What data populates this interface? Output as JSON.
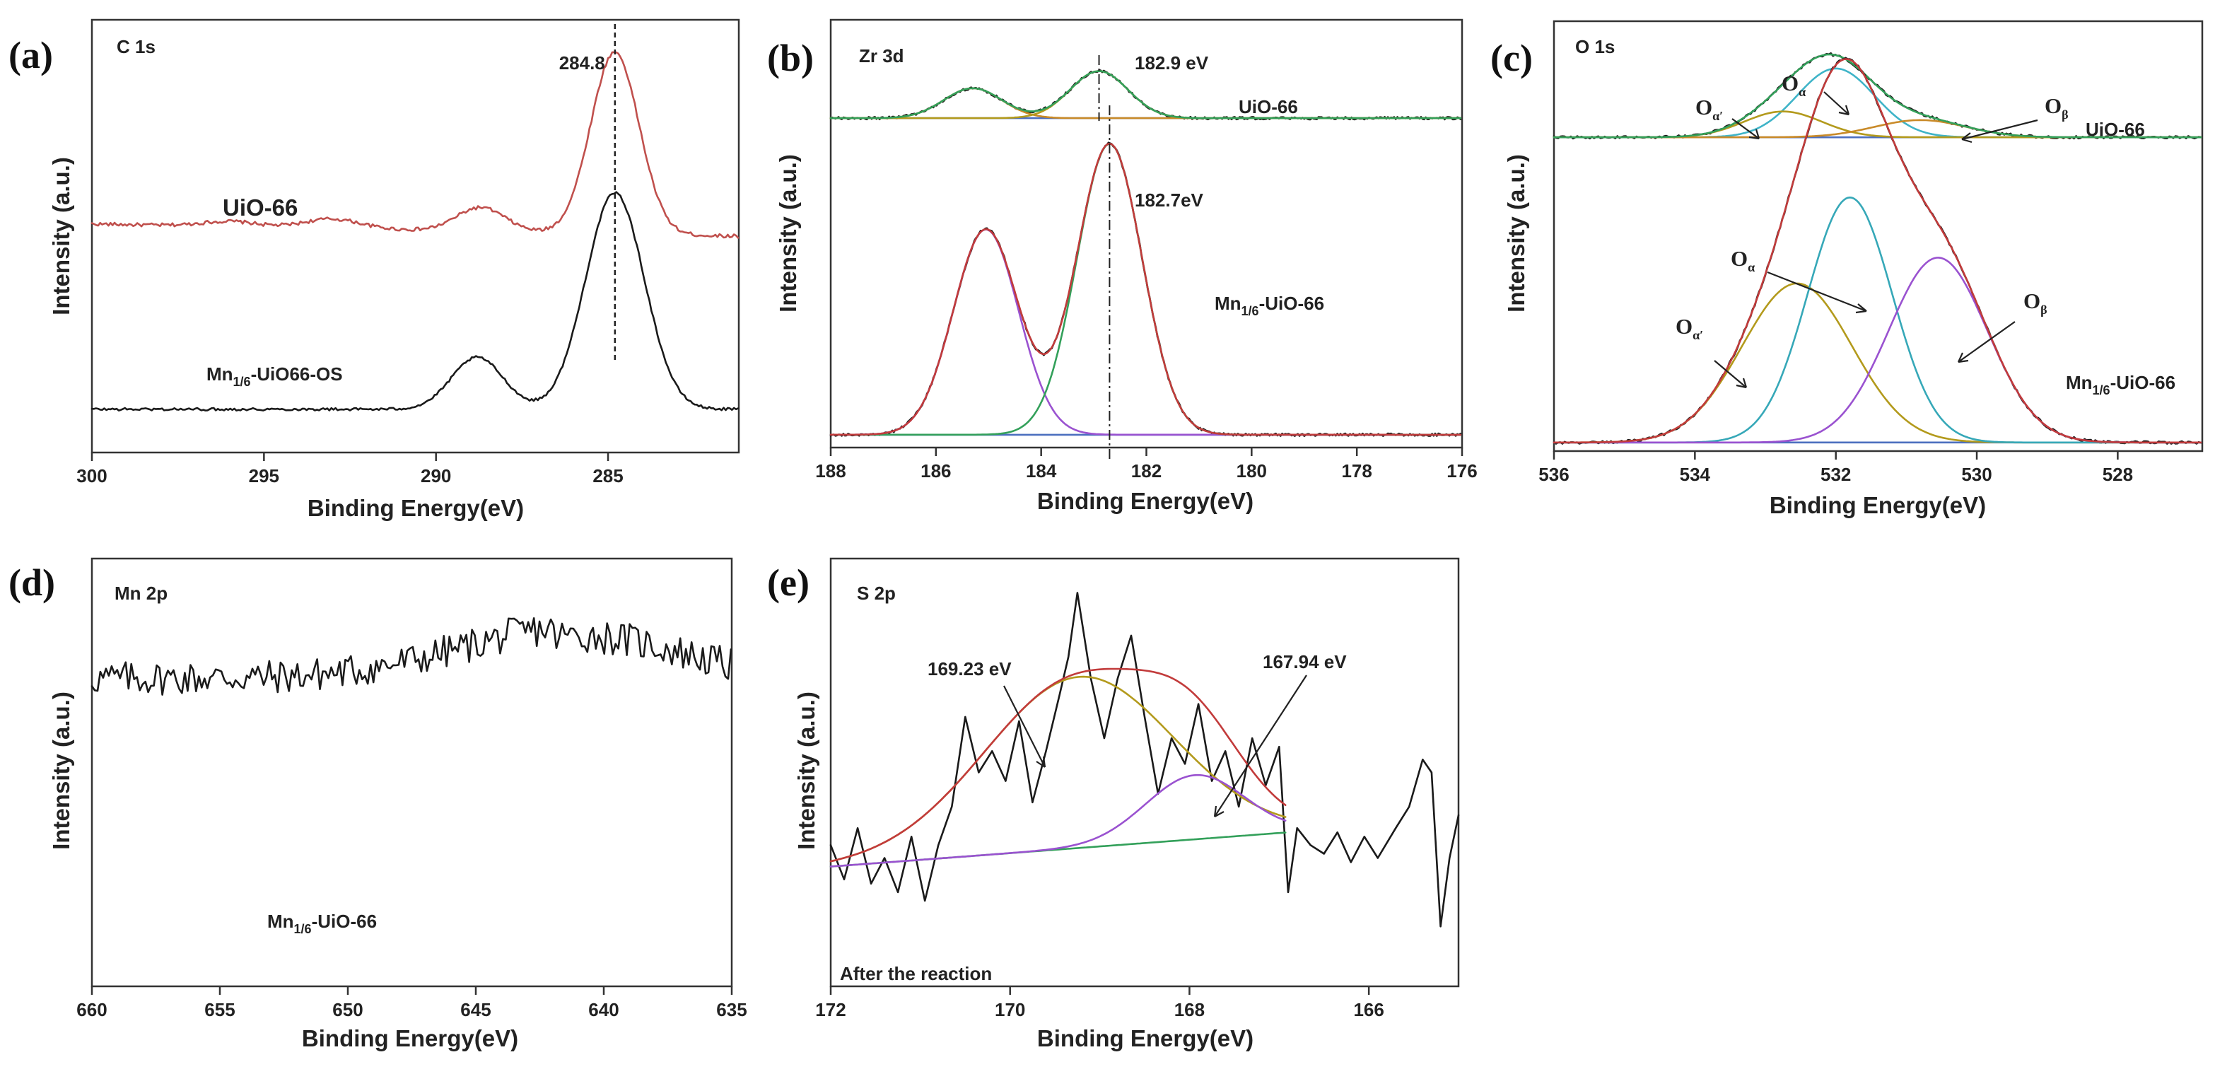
{
  "figure": {
    "panel_labels": [
      "(a)",
      "(b)",
      "(c)",
      "(d)",
      "(e)"
    ],
    "colors": {
      "axis": "#333333",
      "uio66_c1s": "#c0504d",
      "mn_c1s": "#1a1a1a",
      "envelope": "#c23b3b",
      "green": "#33a05a",
      "orange": "#c98a28",
      "olive": "#b39a1c",
      "purple": "#9a52d0",
      "teal": "#36a8b8",
      "cyan": "#3fb4c8",
      "baseline_blue": "#4c6fbf",
      "noisy": "#1a1a1a"
    }
  },
  "chart_data": [
    {
      "id": "a",
      "type": "line",
      "title": "C 1s",
      "xlabel": "Binding Energy(eV)",
      "ylabel": "Intensity (a.u.)",
      "xlim": [
        300,
        281.2
      ],
      "ylim": [
        0,
        1
      ],
      "xticks": [
        300,
        295,
        290,
        285
      ],
      "peak_marker": {
        "x": 284.8,
        "label": "284.8"
      },
      "series": [
        {
          "name": "UiO-66",
          "label": "UiO-66",
          "color_key": "uio66_c1s",
          "base": 0.5,
          "noise": 0.004,
          "peaks": [
            {
              "center": 284.8,
              "height": 0.42,
              "sigma": 0.7
            },
            {
              "center": 288.7,
              "height": 0.055,
              "sigma": 0.7
            },
            {
              "center": 293.0,
              "height": 0.022,
              "sigma": 0.8
            },
            {
              "center": 296.0,
              "height": 0.012,
              "sigma": 0.8
            }
          ],
          "slope": 0.0015
        },
        {
          "name": "Mn1/6-UiO66-OS",
          "label_main": "Mn",
          "label_sub": "1/6",
          "label_rest": "-UiO66-OS",
          "color_key": "mn_c1s",
          "base": 0.1,
          "noise": 0.003,
          "peaks": [
            {
              "center": 284.8,
              "height": 0.5,
              "sigma": 0.85
            },
            {
              "center": 288.8,
              "height": 0.12,
              "sigma": 0.75
            }
          ],
          "slope": 0.0
        }
      ]
    },
    {
      "id": "b",
      "type": "line",
      "title": "Zr 3d",
      "xlabel": "Binding Energy(eV)",
      "ylabel": "Intensity (a.u.)",
      "xlim": [
        188,
        176
      ],
      "ylim": [
        0,
        1
      ],
      "xticks": [
        188,
        186,
        184,
        182,
        180,
        178,
        176
      ],
      "series_groups": [
        {
          "name": "UiO-66",
          "label": "UiO-66",
          "base": 0.77,
          "marker": {
            "x": 182.9,
            "label": "182.9 eV"
          },
          "components": [
            {
              "center": 185.3,
              "height": 0.07,
              "sigma": 0.55,
              "color_key": "orange"
            },
            {
              "center": 182.9,
              "height": 0.11,
              "sigma": 0.55,
              "color_key": "olive"
            }
          ],
          "envelope_color_key": "green"
        },
        {
          "name": "Mn1/6-UiO-66",
          "label_main": "Mn",
          "label_sub": "1/6",
          "label_rest": "-UiO-66",
          "base": 0.03,
          "marker": {
            "x": 182.7,
            "label": "182.7eV"
          },
          "components": [
            {
              "center": 185.05,
              "height": 0.48,
              "sigma": 0.62,
              "color_key": "purple"
            },
            {
              "center": 182.7,
              "height": 0.68,
              "sigma": 0.62,
              "color_key": "green"
            }
          ],
          "envelope_color_key": "envelope"
        }
      ]
    },
    {
      "id": "c",
      "type": "line",
      "title": "O 1s",
      "xlabel": "Binding Energy(eV)",
      "ylabel": "Intensity (a.u.)",
      "xlim": [
        536,
        526.8
      ],
      "ylim": [
        0,
        1
      ],
      "xticks": [
        536,
        534,
        532,
        530,
        528
      ],
      "series_groups": [
        {
          "name": "UiO-66",
          "label": "UiO-66",
          "base": 0.73,
          "components": [
            {
              "center": 532.0,
              "height": 0.16,
              "sigma": 0.55,
              "color_key": "cyan"
            },
            {
              "center": 532.75,
              "height": 0.06,
              "sigma": 0.55,
              "color_key": "olive"
            },
            {
              "center": 530.8,
              "height": 0.04,
              "sigma": 0.65,
              "color_key": "orange"
            }
          ],
          "envelope_color_key": "green",
          "labels": [
            {
              "main": "O",
              "sub": "α′",
              "target": "olive"
            },
            {
              "main": "O",
              "sub": "α",
              "target": "cyan"
            },
            {
              "main": "O",
              "sub": "β",
              "target": "orange"
            }
          ]
        },
        {
          "name": "Mn1/6-UiO-66",
          "label_main": "Mn",
          "label_sub": "1/6",
          "label_rest": "-UiO-66",
          "base": 0.02,
          "components": [
            {
              "center": 532.55,
              "height": 0.37,
              "sigma": 0.78,
              "color_key": "olive"
            },
            {
              "center": 531.8,
              "height": 0.57,
              "sigma": 0.6,
              "color_key": "teal"
            },
            {
              "center": 530.55,
              "height": 0.43,
              "sigma": 0.7,
              "color_key": "purple"
            }
          ],
          "envelope_color_key": "envelope",
          "labels": [
            {
              "main": "O",
              "sub": "α′",
              "target": "olive"
            },
            {
              "main": "O",
              "sub": "α",
              "target": "teal"
            },
            {
              "main": "O",
              "sub": "β",
              "target": "purple"
            }
          ]
        }
      ]
    },
    {
      "id": "d",
      "type": "line",
      "title": "Mn 2p",
      "xlabel": "Binding Energy(eV)",
      "ylabel": "Intensity (a.u.)",
      "xlim": [
        660,
        635
      ],
      "ylim": [
        0,
        1
      ],
      "xticks": [
        660,
        655,
        650,
        645,
        640,
        635
      ],
      "sample_label": {
        "main": "Mn",
        "sub": "1/6",
        "rest": "-UiO-66"
      },
      "series": [
        {
          "name": "Mn 2p signal",
          "base": 0.72,
          "noise": 0.04,
          "hump": {
            "center": 641,
            "height": 0.12,
            "sigma": 4.5
          }
        }
      ]
    },
    {
      "id": "e",
      "type": "line",
      "title": "S 2p",
      "subtitle": "After the reaction",
      "xlabel": "Binding Energy(eV)",
      "ylabel": "Intensity (a.u.)",
      "xlim": [
        172,
        165
      ],
      "ylim": [
        0,
        1
      ],
      "xticks": [
        172,
        170,
        168,
        166
      ],
      "annotations": [
        {
          "x": 169.23,
          "label": "169.23 eV"
        },
        {
          "x": 167.94,
          "label": "167.94 eV"
        }
      ],
      "fit_range": [
        172,
        166.9
      ],
      "baseline": [
        0.28,
        0.36
      ],
      "components": [
        {
          "center": 169.23,
          "height": 0.4,
          "sigma": 1.05,
          "color_key": "olive"
        },
        {
          "center": 167.94,
          "height": 0.15,
          "sigma": 0.55,
          "color_key": "purple"
        }
      ],
      "raw": [
        [
          172.0,
          0.33
        ],
        [
          171.85,
          0.25
        ],
        [
          171.7,
          0.37
        ],
        [
          171.55,
          0.24
        ],
        [
          171.4,
          0.3
        ],
        [
          171.25,
          0.22
        ],
        [
          171.1,
          0.35
        ],
        [
          170.95,
          0.2
        ],
        [
          170.8,
          0.33
        ],
        [
          170.65,
          0.42
        ],
        [
          170.5,
          0.63
        ],
        [
          170.35,
          0.5
        ],
        [
          170.2,
          0.55
        ],
        [
          170.05,
          0.48
        ],
        [
          169.9,
          0.62
        ],
        [
          169.75,
          0.43
        ],
        [
          169.6,
          0.55
        ],
        [
          169.45,
          0.68
        ],
        [
          169.35,
          0.77
        ],
        [
          169.25,
          0.92
        ],
        [
          169.1,
          0.72
        ],
        [
          168.95,
          0.58
        ],
        [
          168.8,
          0.72
        ],
        [
          168.65,
          0.82
        ],
        [
          168.5,
          0.63
        ],
        [
          168.35,
          0.45
        ],
        [
          168.2,
          0.58
        ],
        [
          168.05,
          0.52
        ],
        [
          167.9,
          0.66
        ],
        [
          167.75,
          0.48
        ],
        [
          167.6,
          0.55
        ],
        [
          167.45,
          0.42
        ],
        [
          167.3,
          0.58
        ],
        [
          167.15,
          0.47
        ],
        [
          167.0,
          0.56
        ],
        [
          166.9,
          0.22
        ],
        [
          166.8,
          0.37
        ],
        [
          166.65,
          0.33
        ],
        [
          166.5,
          0.31
        ],
        [
          166.35,
          0.36
        ],
        [
          166.2,
          0.29
        ],
        [
          166.05,
          0.35
        ],
        [
          165.9,
          0.3
        ],
        [
          165.7,
          0.37
        ],
        [
          165.55,
          0.42
        ],
        [
          165.4,
          0.53
        ],
        [
          165.3,
          0.5
        ],
        [
          165.2,
          0.14
        ],
        [
          165.1,
          0.3
        ],
        [
          165.0,
          0.4
        ]
      ]
    }
  ]
}
